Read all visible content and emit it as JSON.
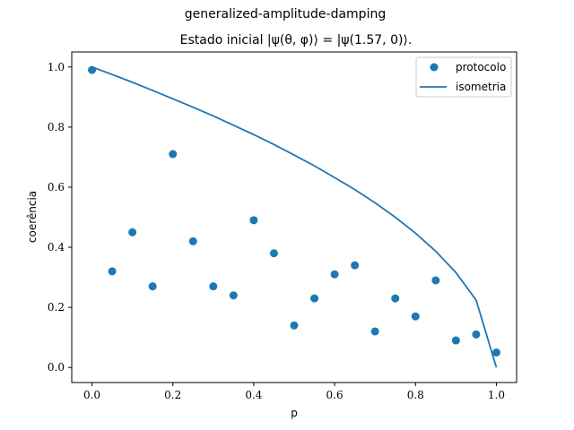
{
  "chart_data": {
    "type": "scatter",
    "title": "generalized-amplitude-damping",
    "subtitle": "Estado inicial |ψ(θ, φ)⟩ = |ψ(1.57, 0)⟩.",
    "xlabel": "p",
    "ylabel": "coerência",
    "xlim": [
      -0.05,
      1.05
    ],
    "ylim": [
      -0.05,
      1.05
    ],
    "xticks": [
      "0.0",
      "0.2",
      "0.4",
      "0.6",
      "0.8",
      "1.0"
    ],
    "yticks": [
      "0.0",
      "0.2",
      "0.4",
      "0.6",
      "0.8",
      "1.0"
    ],
    "grid": false,
    "legend_position": "top-right",
    "series": [
      {
        "name": "protocolo",
        "type": "scatter",
        "color": "#1f77b4",
        "x": [
          0.0,
          0.05,
          0.1,
          0.15,
          0.2,
          0.25,
          0.3,
          0.35,
          0.4,
          0.45,
          0.5,
          0.55,
          0.6,
          0.65,
          0.7,
          0.75,
          0.8,
          0.85,
          0.9,
          0.95,
          1.0
        ],
        "y": [
          0.99,
          0.32,
          0.45,
          0.27,
          0.71,
          0.42,
          0.27,
          0.24,
          0.49,
          0.38,
          0.14,
          0.23,
          0.31,
          0.34,
          0.12,
          0.23,
          0.17,
          0.29,
          0.09,
          0.11,
          0.05
        ]
      },
      {
        "name": "isometria",
        "type": "line",
        "color": "#1f77b4",
        "x": [
          0.0,
          0.05,
          0.1,
          0.15,
          0.2,
          0.25,
          0.3,
          0.35,
          0.4,
          0.45,
          0.5,
          0.55,
          0.6,
          0.65,
          0.7,
          0.75,
          0.8,
          0.85,
          0.9,
          0.95,
          1.0
        ],
        "y": [
          1.0,
          0.975,
          0.949,
          0.922,
          0.894,
          0.866,
          0.837,
          0.806,
          0.775,
          0.742,
          0.707,
          0.671,
          0.632,
          0.592,
          0.548,
          0.5,
          0.447,
          0.387,
          0.316,
          0.224,
          0.0
        ]
      }
    ]
  }
}
